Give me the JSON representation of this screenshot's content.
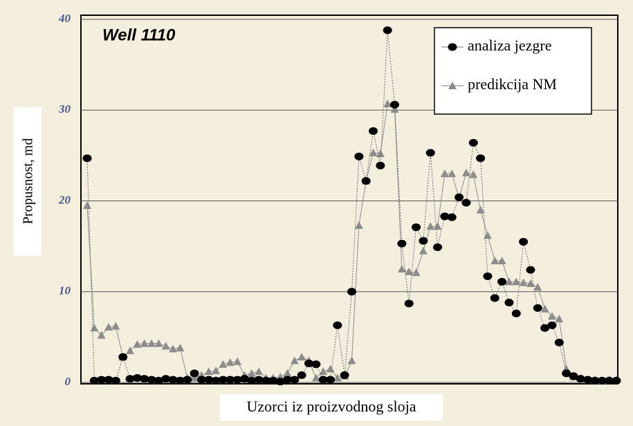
{
  "chart_data": {
    "type": "line",
    "title": "Well 1110",
    "x_label": "Uzorci iz proizvodnog sloja",
    "y_label": "Propusnost, md",
    "categories": [
      null,
      null,
      null,
      null,
      null,
      null,
      null,
      null,
      null,
      null,
      null,
      null,
      null,
      null,
      null,
      null,
      null,
      null,
      null,
      null,
      null,
      null,
      null,
      null,
      null,
      null,
      null,
      null,
      null,
      null,
      null,
      null,
      null,
      null,
      null,
      null,
      null,
      null,
      null,
      null,
      null,
      null,
      null,
      null,
      null,
      null,
      null,
      null,
      null,
      null,
      null,
      null,
      null,
      null,
      null,
      null,
      null,
      null,
      null,
      null,
      null,
      null,
      null,
      null,
      null,
      null,
      null,
      null,
      null,
      null,
      null,
      null,
      null,
      null,
      null
    ],
    "series": [
      {
        "name": "analiza jezgre",
        "color": "#000000",
        "marker": "circle",
        "values": [
          24.7,
          0.2,
          0.3,
          0.3,
          0.2,
          2.8,
          0.4,
          0.5,
          0.4,
          0.3,
          0.2,
          0.4,
          0.3,
          0.2,
          0.3,
          1.0,
          0.3,
          0.3,
          0.2,
          0.3,
          0.3,
          0.3,
          0.4,
          0.2,
          0.3,
          0.2,
          0.2,
          0.1,
          0.3,
          0.3,
          0.8,
          2.1,
          2.0,
          0.3,
          0.3,
          6.3,
          0.8,
          10.0,
          24.9,
          22.2,
          27.7,
          23.9,
          38.8,
          30.6,
          15.3,
          8.7,
          17.1,
          15.6,
          25.3,
          14.9,
          18.3,
          18.2,
          20.4,
          19.8,
          26.4,
          24.7,
          11.7,
          9.3,
          11.1,
          8.8,
          7.6,
          15.5,
          12.4,
          8.2,
          6.0,
          6.3,
          4.4,
          1.0,
          0.7,
          0.4,
          0.3,
          0.2,
          0.2,
          0.2,
          0.2
        ]
      },
      {
        "name": "predikcija NM",
        "color": "#8c8c8c",
        "marker": "triangle",
        "values": [
          19.5,
          6.0,
          5.2,
          6.1,
          6.2,
          2.8,
          3.5,
          4.2,
          4.3,
          4.3,
          4.3,
          4.0,
          3.7,
          3.8,
          0.5,
          0.5,
          0.8,
          1.2,
          1.3,
          2.0,
          2.2,
          2.3,
          0.8,
          1.0,
          1.2,
          0.5,
          0.5,
          0.6,
          1.0,
          2.4,
          2.8,
          2.4,
          0.5,
          1.2,
          1.5,
          0.5,
          0.7,
          2.4,
          17.3,
          22.2,
          25.3,
          25.2,
          30.7,
          30.1,
          12.5,
          12.2,
          12.1,
          14.5,
          17.2,
          17.2,
          23.0,
          23.0,
          20.3,
          23.1,
          22.9,
          19.0,
          16.2,
          13.4,
          13.4,
          11.1,
          11.1,
          11.0,
          10.9,
          10.5,
          8.1,
          7.3,
          7.0,
          1.5,
          0.6,
          0.5,
          0.3,
          0.3,
          0.2,
          0.3,
          0.3
        ]
      }
    ],
    "ylim": [
      0,
      40
    ],
    "yticks": [
      0,
      10,
      20,
      30,
      40
    ],
    "grid": true,
    "legend": "upper right"
  }
}
